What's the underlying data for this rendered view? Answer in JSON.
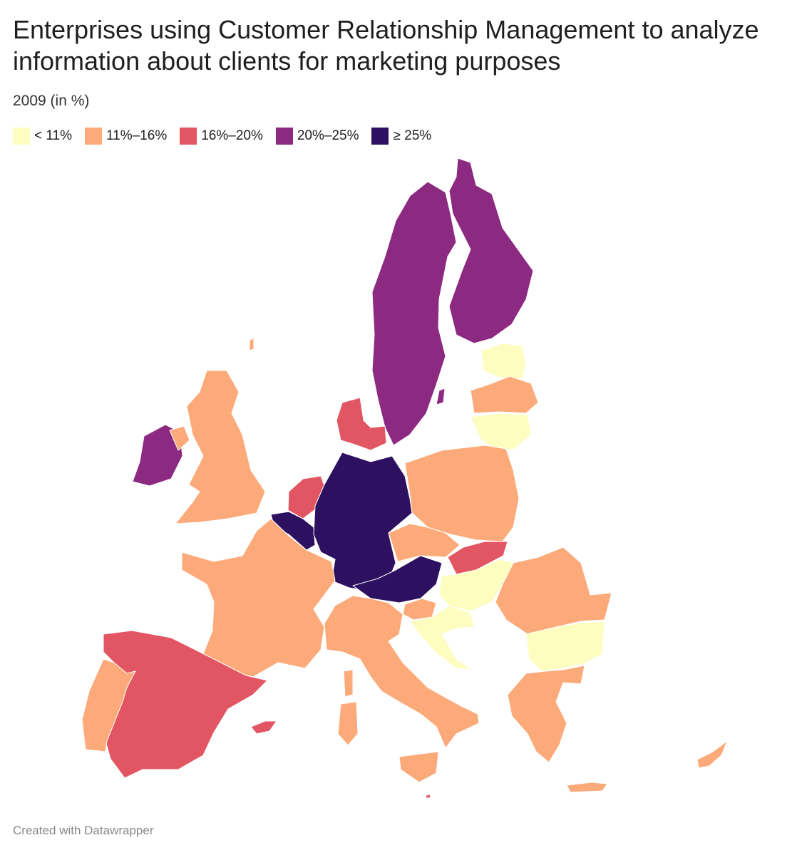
{
  "title": "Enterprises using Customer Relationship Management to analyze information about clients for marketing purposes",
  "subtitle": "2009 (in %)",
  "legend": [
    {
      "label": "< 11%",
      "color": "#fcfdbf"
    },
    {
      "label": "11%–16%",
      "color": "#fdaa7a"
    },
    {
      "label": "16%–20%",
      "color": "#e25563"
    },
    {
      "label": "20%–25%",
      "color": "#8c2981"
    },
    {
      "label": "≥ 25%",
      "color": "#2d1160"
    }
  ],
  "regions": [
    {
      "id": "norway-sweden",
      "category": 3
    },
    {
      "id": "finland",
      "category": 3
    },
    {
      "id": "ireland",
      "category": 3
    },
    {
      "id": "uk",
      "category": 1
    },
    {
      "id": "denmark",
      "category": 2
    },
    {
      "id": "netherlands",
      "category": 2
    },
    {
      "id": "belgium",
      "category": 4
    },
    {
      "id": "germany",
      "category": 4
    },
    {
      "id": "austria",
      "category": 4
    },
    {
      "id": "france",
      "category": 1
    },
    {
      "id": "spain",
      "category": 2
    },
    {
      "id": "portugal",
      "category": 1
    },
    {
      "id": "italy",
      "category": 1
    },
    {
      "id": "poland",
      "category": 1
    },
    {
      "id": "czechia",
      "category": 1
    },
    {
      "id": "slovakia",
      "category": 2
    },
    {
      "id": "hungary",
      "category": 0
    },
    {
      "id": "slovenia",
      "category": 1
    },
    {
      "id": "croatia",
      "category": 0
    },
    {
      "id": "romania",
      "category": 1
    },
    {
      "id": "bulgaria",
      "category": 0
    },
    {
      "id": "greece",
      "category": 1
    },
    {
      "id": "estonia",
      "category": 0
    },
    {
      "id": "latvia",
      "category": 1
    },
    {
      "id": "lithuania",
      "category": 0
    },
    {
      "id": "cyprus",
      "category": 1
    },
    {
      "id": "malta",
      "category": 2
    }
  ],
  "footer": "Created with Datawrapper"
}
